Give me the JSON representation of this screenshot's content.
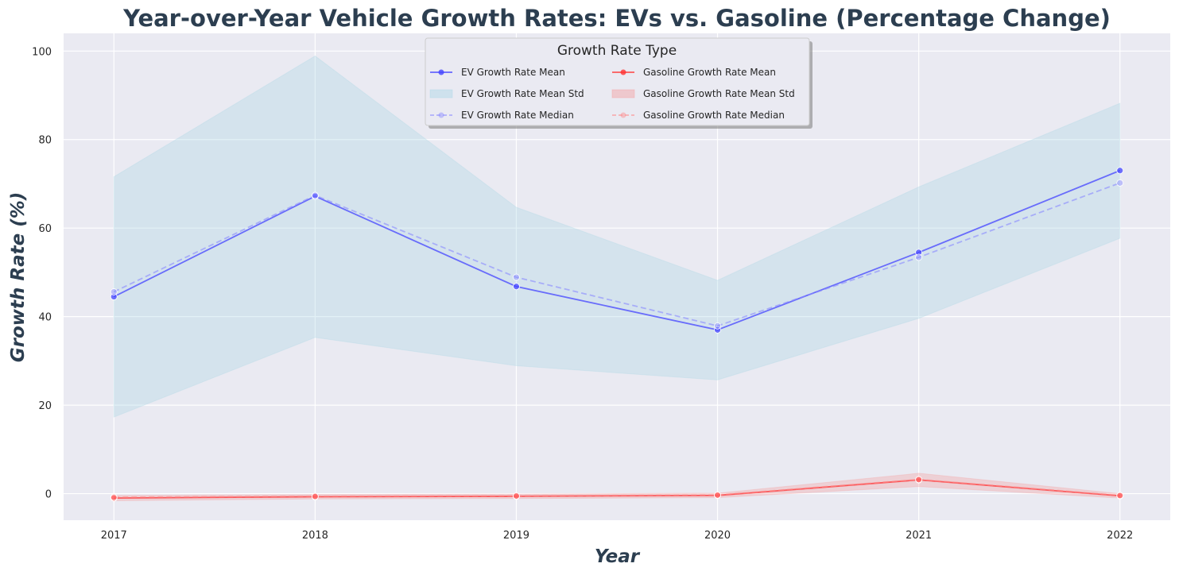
{
  "chart_data": {
    "type": "line",
    "title": "Year-over-Year Vehicle Growth Rates: EVs vs. Gasoline (Percentage Change)",
    "xlabel": "Year",
    "ylabel": "Growth Rate (%)",
    "x": [
      2017,
      2018,
      2019,
      2020,
      2021,
      2022
    ],
    "xlim": [
      2016.75,
      2022.25
    ],
    "ylim": [
      -6,
      104
    ],
    "yticks": [
      0,
      20,
      40,
      60,
      80,
      100
    ],
    "grid": true,
    "legend": {
      "title": "Growth Rate Type",
      "placement": "top-center",
      "entries": [
        "EV Growth Rate Mean",
        "EV Growth Rate Mean Std",
        "EV Growth Rate Median",
        "Gasoline Growth Rate Mean",
        "Gasoline Growth Rate Mean Std",
        "Gasoline Growth Rate Median"
      ]
    },
    "series": [
      {
        "name": "EV Growth Rate Mean",
        "style": "solid",
        "color": "#4444ff",
        "values": [
          44.5,
          67.2,
          46.8,
          37.0,
          54.5,
          73.0
        ],
        "band_name": "EV Growth Rate Mean Std",
        "band_color": "#add8e6",
        "band_lower": [
          17.3,
          35.3,
          28.9,
          25.7,
          39.6,
          57.7
        ],
        "band_upper": [
          71.6,
          98.9,
          64.7,
          48.2,
          69.3,
          88.2
        ]
      },
      {
        "name": "EV Growth Rate Median",
        "style": "dashed",
        "color": "#8888ff",
        "values": [
          45.6,
          67.4,
          48.9,
          37.9,
          53.4,
          70.2
        ]
      },
      {
        "name": "Gasoline Growth Rate Mean",
        "style": "solid",
        "color": "#ff3333",
        "values": [
          -1.0,
          -0.7,
          -0.6,
          -0.4,
          3.1,
          -0.5
        ],
        "band_name": "Gasoline Growth Rate Mean Std",
        "band_color": "#f4a0a0",
        "band_lower": [
          -1.6,
          -1.2,
          -1.1,
          -0.9,
          1.6,
          -1.0
        ],
        "band_upper": [
          -0.4,
          -0.2,
          -0.1,
          0.1,
          4.6,
          0.0
        ]
      },
      {
        "name": "Gasoline Growth Rate Median",
        "style": "dashed",
        "color": "#ff8888",
        "values": [
          -0.8,
          -0.6,
          -0.5,
          -0.3,
          3.2,
          -0.4
        ]
      }
    ]
  }
}
